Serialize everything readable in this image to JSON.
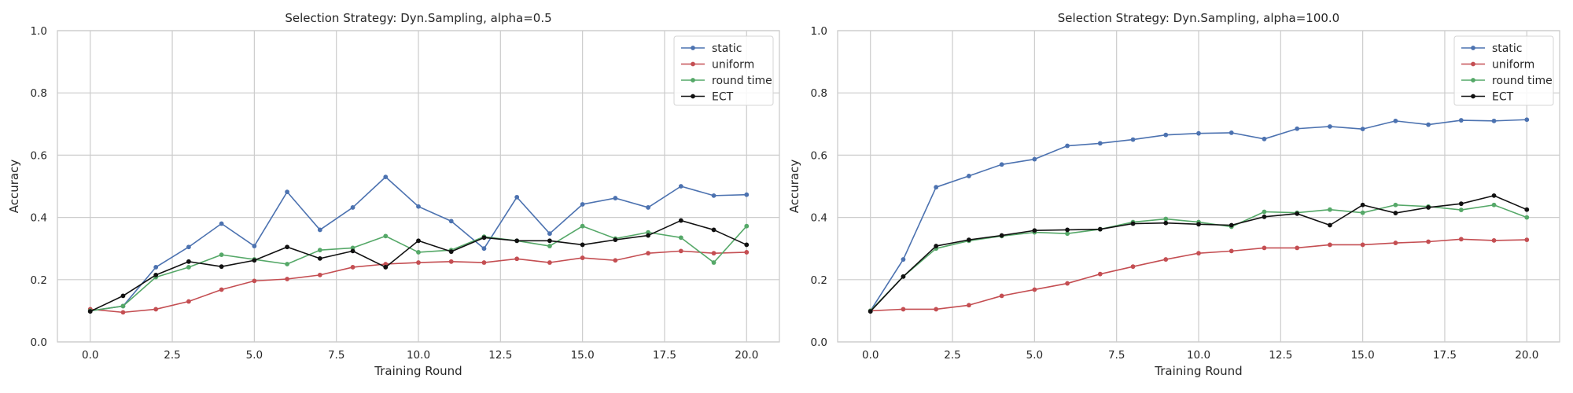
{
  "chart_data": [
    {
      "type": "line",
      "title": "Selection Strategy: Dyn.Sampling, alpha=0.5",
      "xlabel": "Training Round",
      "ylabel": "Accuracy",
      "xlim": [
        -1.0,
        21.0
      ],
      "ylim": [
        0.0,
        1.0
      ],
      "xticks": [
        0.0,
        2.5,
        5.0,
        7.5,
        10.0,
        12.5,
        15.0,
        17.5,
        20.0
      ],
      "xtick_labels": [
        "0.0",
        "2.5",
        "5.0",
        "7.5",
        "10.0",
        "12.5",
        "15.0",
        "17.5",
        "20.0"
      ],
      "yticks": [
        0.0,
        0.2,
        0.4,
        0.6,
        0.8,
        1.0
      ],
      "ytick_labels": [
        "0.0",
        "0.2",
        "0.4",
        "0.6",
        "0.8",
        "1.0"
      ],
      "grid": true,
      "legend_position": "top-right",
      "x": [
        0,
        1,
        2,
        3,
        4,
        5,
        6,
        7,
        8,
        9,
        10,
        11,
        12,
        13,
        14,
        15,
        16,
        17,
        18,
        19,
        20
      ],
      "series": [
        {
          "name": "static",
          "color": "#4c72b0",
          "values": [
            0.1,
            0.115,
            0.24,
            0.305,
            0.38,
            0.308,
            0.482,
            0.36,
            0.432,
            0.53,
            0.435,
            0.388,
            0.3,
            0.465,
            0.348,
            0.442,
            0.462,
            0.432,
            0.5,
            0.47,
            0.473
          ]
        },
        {
          "name": "uniform",
          "color": "#c44e52",
          "values": [
            0.105,
            0.095,
            0.105,
            0.13,
            0.168,
            0.196,
            0.202,
            0.215,
            0.24,
            0.25,
            0.255,
            0.258,
            0.255,
            0.267,
            0.255,
            0.27,
            0.262,
            0.285,
            0.292,
            0.285,
            0.288
          ]
        },
        {
          "name": "round time",
          "color": "#55a868",
          "values": [
            0.1,
            0.115,
            0.208,
            0.24,
            0.28,
            0.265,
            0.25,
            0.295,
            0.302,
            0.34,
            0.288,
            0.295,
            0.338,
            0.325,
            0.308,
            0.372,
            0.332,
            0.352,
            0.335,
            0.255,
            0.372
          ]
        },
        {
          "name": "ECT",
          "color": "#111111",
          "values": [
            0.098,
            0.148,
            0.215,
            0.258,
            0.242,
            0.262,
            0.305,
            0.268,
            0.292,
            0.24,
            0.325,
            0.29,
            0.335,
            0.325,
            0.325,
            0.312,
            0.328,
            0.342,
            0.39,
            0.36,
            0.312
          ]
        }
      ]
    },
    {
      "type": "line",
      "title": "Selection Strategy: Dyn.Sampling, alpha=100.0",
      "xlabel": "Training Round",
      "ylabel": "Accuracy",
      "xlim": [
        -1.0,
        21.0
      ],
      "ylim": [
        0.0,
        1.0
      ],
      "xticks": [
        0.0,
        2.5,
        5.0,
        7.5,
        10.0,
        12.5,
        15.0,
        17.5,
        20.0
      ],
      "xtick_labels": [
        "0.0",
        "2.5",
        "5.0",
        "7.5",
        "10.0",
        "12.5",
        "15.0",
        "17.5",
        "20.0"
      ],
      "yticks": [
        0.0,
        0.2,
        0.4,
        0.6,
        0.8,
        1.0
      ],
      "ytick_labels": [
        "0.0",
        "0.2",
        "0.4",
        "0.6",
        "0.8",
        "1.0"
      ],
      "grid": true,
      "legend_position": "top-right",
      "x": [
        0,
        1,
        2,
        3,
        4,
        5,
        6,
        7,
        8,
        9,
        10,
        11,
        12,
        13,
        14,
        15,
        16,
        17,
        18,
        19,
        20
      ],
      "series": [
        {
          "name": "static",
          "color": "#4c72b0",
          "values": [
            0.1,
            0.265,
            0.497,
            0.533,
            0.57,
            0.587,
            0.63,
            0.638,
            0.65,
            0.665,
            0.67,
            0.672,
            0.652,
            0.685,
            0.692,
            0.684,
            0.71,
            0.698,
            0.712,
            0.71,
            0.714
          ]
        },
        {
          "name": "uniform",
          "color": "#c44e52",
          "values": [
            0.1,
            0.105,
            0.105,
            0.118,
            0.148,
            0.168,
            0.188,
            0.218,
            0.242,
            0.265,
            0.285,
            0.292,
            0.302,
            0.302,
            0.312,
            0.312,
            0.318,
            0.322,
            0.33,
            0.326,
            0.328
          ]
        },
        {
          "name": "round time",
          "color": "#55a868",
          "values": [
            0.1,
            0.21,
            0.3,
            0.325,
            0.34,
            0.352,
            0.348,
            0.362,
            0.385,
            0.395,
            0.385,
            0.37,
            0.418,
            0.415,
            0.425,
            0.415,
            0.44,
            0.435,
            0.424,
            0.44,
            0.4
          ]
        },
        {
          "name": "ECT",
          "color": "#111111",
          "values": [
            0.098,
            0.21,
            0.308,
            0.328,
            0.342,
            0.358,
            0.36,
            0.362,
            0.38,
            0.382,
            0.378,
            0.375,
            0.402,
            0.412,
            0.375,
            0.44,
            0.414,
            0.432,
            0.444,
            0.47,
            0.425
          ]
        }
      ]
    }
  ]
}
